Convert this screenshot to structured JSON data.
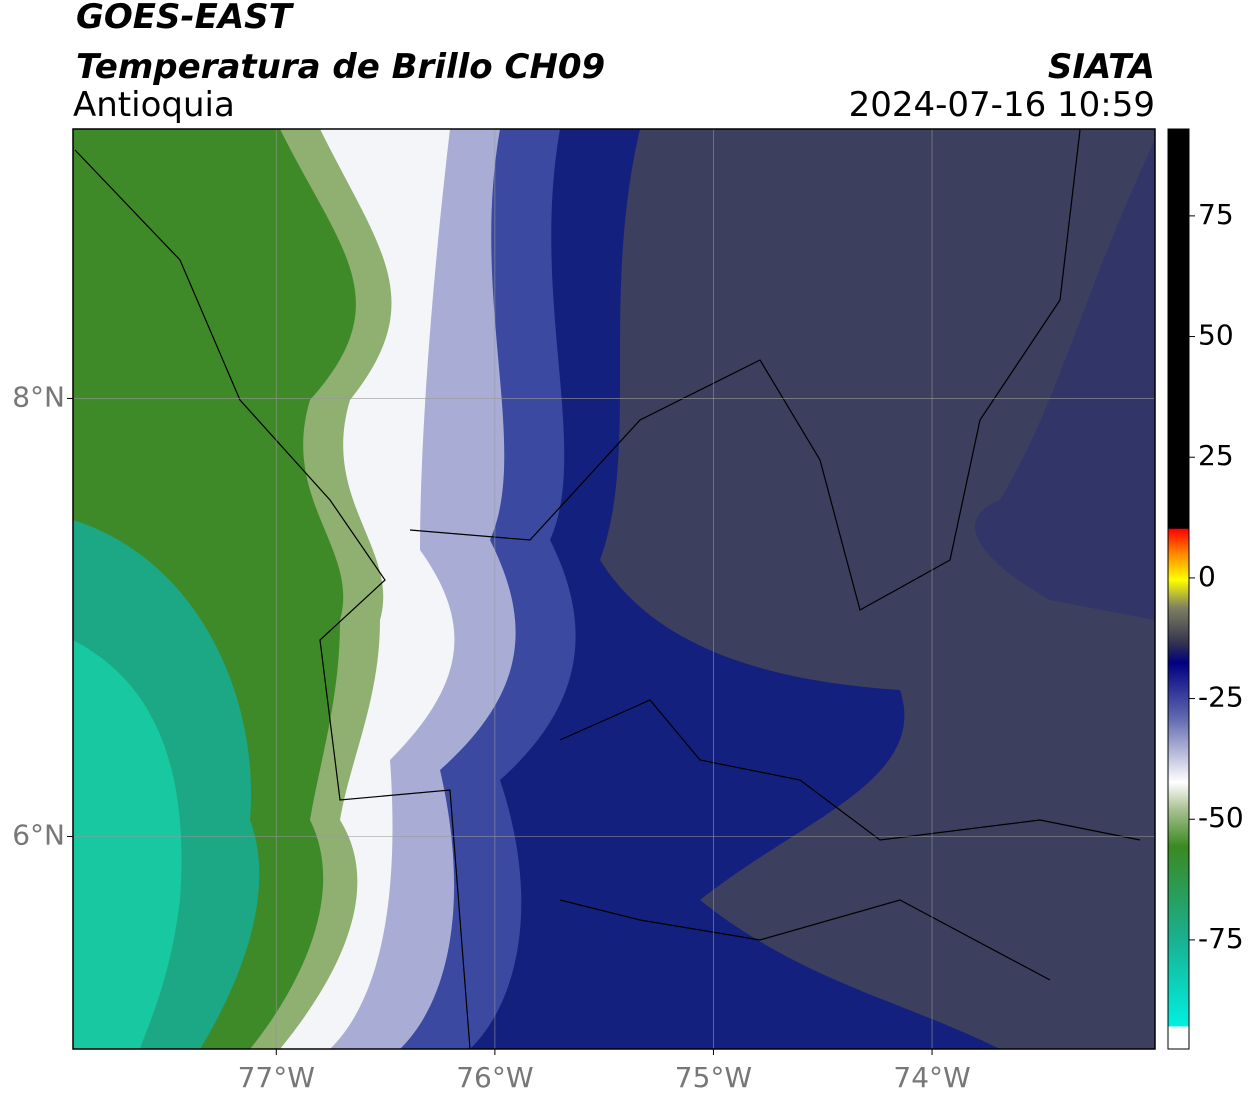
{
  "header": {
    "title": "GOES-EAST",
    "subtitle": "Temperatura de Brillo CH09",
    "region": "Antioquia",
    "source": "SIATA",
    "datetime": "2024-07-16 10:59"
  },
  "map": {
    "xlim": [
      -77.93,
      -72.98
    ],
    "ylim": [
      5.03,
      9.23
    ],
    "xticks": [
      {
        "value": -77,
        "label": "77°W"
      },
      {
        "value": -76,
        "label": "76°W"
      },
      {
        "value": -75,
        "label": "75°W"
      },
      {
        "value": -74,
        "label": "74°W"
      }
    ],
    "yticks": [
      {
        "value": 8,
        "label": "8°N"
      },
      {
        "value": 6,
        "label": "6°N"
      }
    ],
    "grid": true
  },
  "colorbar": {
    "lim": [
      -97.6,
      93
    ],
    "ticks": [
      75,
      50,
      25,
      0,
      -25,
      -50,
      -75
    ]
  }
}
